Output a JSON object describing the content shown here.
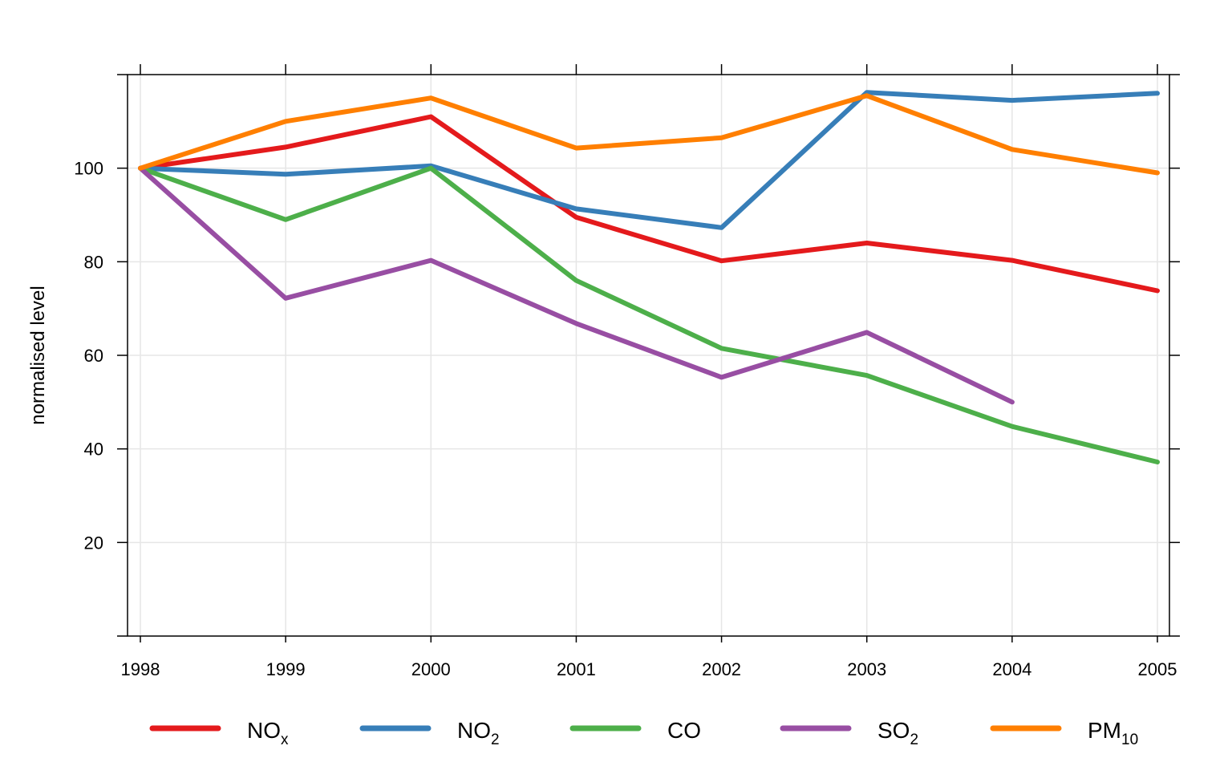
{
  "chart_data": {
    "type": "line",
    "title": "",
    "xlabel": "",
    "ylabel": "normalised level",
    "x": [
      "1998",
      "1999",
      "2000",
      "2001",
      "2002",
      "2003",
      "2004",
      "2005"
    ],
    "xlim": [
      1998,
      2005
    ],
    "ylim": [
      0,
      120
    ],
    "yticks": [
      20,
      40,
      60,
      80,
      100
    ],
    "grid": true,
    "legend_position": "bottom",
    "series": [
      {
        "name": "NOx",
        "label_main": "NO",
        "label_sub": "x",
        "color": "#E41A1C",
        "values": [
          100,
          104.5,
          111,
          89.5,
          80.2,
          84,
          80.3,
          73.8
        ]
      },
      {
        "name": "NO2",
        "label_main": "NO",
        "label_sub": "2",
        "color": "#377EB8",
        "values": [
          100,
          98.7,
          100.5,
          91.3,
          87.3,
          116.2,
          114.5,
          116
        ]
      },
      {
        "name": "CO",
        "label_main": "CO",
        "label_sub": "",
        "color": "#4DAF4A",
        "values": [
          100,
          89,
          100,
          76,
          61.5,
          55.7,
          44.8,
          37.2
        ]
      },
      {
        "name": "SO2",
        "label_main": "SO",
        "label_sub": "2",
        "color": "#984EA3",
        "values": [
          100,
          72.2,
          80.3,
          66.8,
          55.3,
          64.9,
          50,
          null
        ]
      },
      {
        "name": "PM10",
        "label_main": "PM",
        "label_sub": "10",
        "color": "#FF7F00",
        "values": [
          100,
          110,
          115,
          104.3,
          106.5,
          115.5,
          104,
          99
        ]
      }
    ]
  }
}
